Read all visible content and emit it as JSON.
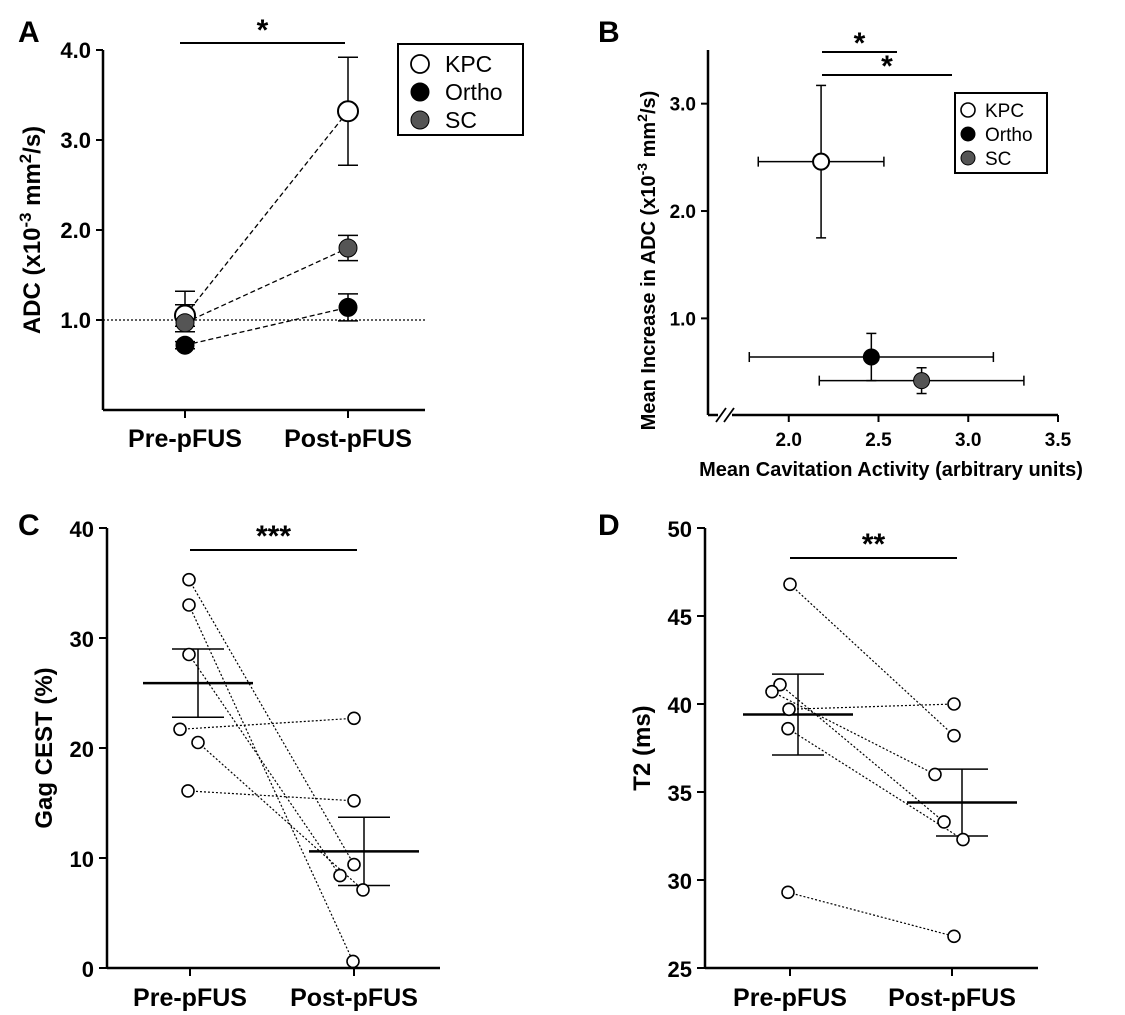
{
  "chart_data": [
    {
      "panel": "A",
      "type": "line",
      "ylabel_parts": [
        "ADC (x10",
        "-3",
        " mm",
        "2",
        "/s)"
      ],
      "categories": [
        "Pre-pFUS",
        "Post-pFUS"
      ],
      "ylim": [
        0,
        4.0
      ],
      "yticks": [
        "1.0",
        "2.0",
        "3.0",
        "4.0"
      ],
      "reference_line": 1.0,
      "significance": "*",
      "legend": [
        "KPC",
        "Ortho",
        "SC"
      ],
      "series": [
        {
          "name": "KPC",
          "fill": "#ffffff",
          "values": [
            1.05,
            3.32
          ],
          "err_up": [
            0.27,
            0.6
          ],
          "err_down": [
            0.12,
            0.6
          ]
        },
        {
          "name": "Ortho",
          "fill": "#000000",
          "values": [
            0.72,
            1.14
          ],
          "err_up": [
            0.04,
            0.15
          ],
          "err_down": [
            0.04,
            0.15
          ]
        },
        {
          "name": "SC",
          "fill": "#555555",
          "values": [
            0.97,
            1.8
          ],
          "err_up": [
            0.2,
            0.14
          ],
          "err_down": [
            0.1,
            0.14
          ]
        }
      ]
    },
    {
      "panel": "B",
      "type": "scatter",
      "xlabel": "Mean Cavitation Activity (arbitrary units)",
      "ylabel_parts": [
        "Mean Increase in ADC (x10",
        "-3",
        " mm",
        "2",
        "/s)"
      ],
      "xlim": [
        1.55,
        3.5
      ],
      "ylim": [
        0.1,
        3.5
      ],
      "xticks": [
        "2.0",
        "2.5",
        "3.0",
        "3.5"
      ],
      "yticks": [
        "1.0",
        "2.0",
        "3.0"
      ],
      "significance": [
        "*",
        "*"
      ],
      "legend": [
        "KPC",
        "Ortho",
        "SC"
      ],
      "points": [
        {
          "name": "KPC",
          "fill": "#ffffff",
          "x": 2.18,
          "y": 2.46,
          "xerr": 0.35,
          "yerr": 0.71
        },
        {
          "name": "Ortho",
          "fill": "#000000",
          "x": 2.46,
          "y": 0.64,
          "xerr": 0.68,
          "yerr": 0.22
        },
        {
          "name": "SC",
          "fill": "#555555",
          "x": 2.74,
          "y": 0.42,
          "xerr": 0.57,
          "yerr": 0.12
        }
      ]
    },
    {
      "panel": "C",
      "type": "scatter",
      "ylabel": "Gag CEST (%)",
      "categories": [
        "Pre-pFUS",
        "Post-pFUS"
      ],
      "ylim": [
        0,
        40
      ],
      "yticks": [
        "0",
        "10",
        "20",
        "30",
        "40"
      ],
      "significance": "***",
      "mean": [
        25.9,
        10.6
      ],
      "sem": [
        3.1,
        3.1
      ],
      "pairs": [
        [
          35.3,
          9.4
        ],
        [
          33.0,
          0.6
        ],
        [
          28.5,
          8.4
        ],
        [
          21.7,
          22.7
        ],
        [
          20.5,
          7.1
        ],
        [
          16.1,
          15.2
        ]
      ]
    },
    {
      "panel": "D",
      "type": "scatter",
      "ylabel": "T2 (ms)",
      "categories": [
        "Pre-pFUS",
        "Post-pFUS"
      ],
      "ylim": [
        25,
        50
      ],
      "yticks": [
        "25",
        "30",
        "35",
        "40",
        "45",
        "50"
      ],
      "significance": "**",
      "mean": [
        39.4,
        34.4
      ],
      "sem": [
        2.3,
        1.9
      ],
      "pairs": [
        [
          46.8,
          38.2
        ],
        [
          41.1,
          33.3
        ],
        [
          40.7,
          36.0
        ],
        [
          39.7,
          40.0
        ],
        [
          38.6,
          32.3
        ],
        [
          29.3,
          26.8
        ]
      ]
    }
  ]
}
